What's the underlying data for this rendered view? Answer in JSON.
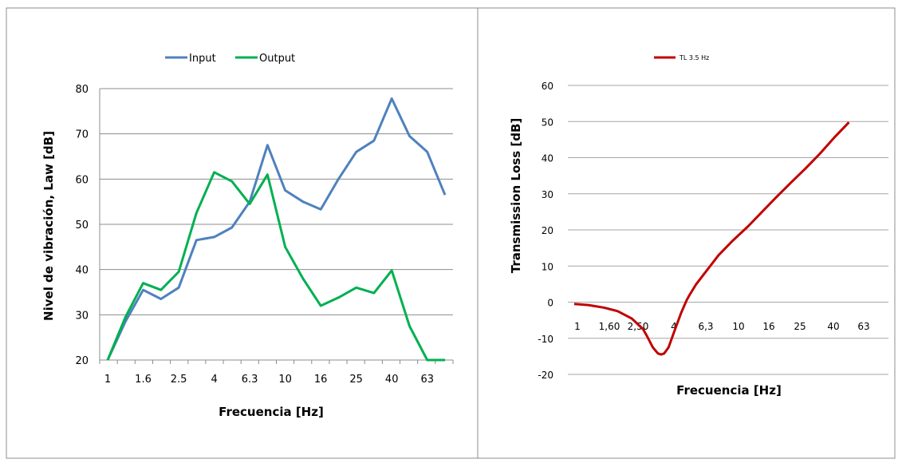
{
  "chart_data": [
    {
      "type": "line",
      "xlabel": "Frecuencia [Hz]",
      "ylabel": "Nivel de vibración,  Law  [dB]",
      "ylim": [
        20,
        80
      ],
      "y_ticks": [
        20,
        30,
        40,
        50,
        60,
        70,
        80
      ],
      "grid": "horizontal",
      "legend_position": "top",
      "categories": [
        "1",
        "1.25",
        "1.6",
        "2",
        "2.5",
        "3.15",
        "4",
        "5",
        "6.3",
        "8",
        "10",
        "12.5",
        "16",
        "20",
        "25",
        "31.5",
        "40",
        "50",
        "63",
        "80"
      ],
      "x_tick_labels": [
        "1",
        "1.6",
        "2.5",
        "4",
        "6.3",
        "10",
        "16",
        "25",
        "40",
        "63"
      ],
      "series": [
        {
          "name": "Input",
          "color": "#4F81BD",
          "values": [
            20,
            28.5,
            35.5,
            33.5,
            36,
            46.5,
            47.2,
            49.3,
            55,
            67.5,
            57.5,
            55,
            53.3,
            60,
            66,
            68.5,
            77.8,
            69.5,
            66,
            56.5
          ]
        },
        {
          "name": "Output",
          "color": "#00B050",
          "values": [
            20,
            29.5,
            37,
            35.5,
            39.5,
            52.5,
            61.5,
            59.5,
            54.5,
            61,
            45,
            38,
            32,
            33.8,
            36,
            34.8,
            39.8,
            27.5,
            20,
            20
          ]
        }
      ]
    },
    {
      "type": "line",
      "xlabel": "Frecuencia [Hz]",
      "ylabel": "Transmission Loss  [dB]",
      "ylim": [
        -20,
        60
      ],
      "y_ticks": [
        -20,
        -10,
        0,
        10,
        20,
        30,
        40,
        50,
        60
      ],
      "grid": "horizontal",
      "legend_position": "top",
      "x_scale": "log",
      "x_tick_labels": [
        "1",
        "1,60",
        "2,50",
        "4",
        "6,3",
        "10",
        "16",
        "25",
        "40",
        "63"
      ],
      "series": [
        {
          "name": "TL   3.5 Hz",
          "color": "#C00000",
          "x": [
            1,
            1.25,
            1.6,
            2,
            2.5,
            3,
            3.2,
            3.5,
            3.8,
            4,
            4.2,
            4.5,
            5,
            5.5,
            6,
            6.3,
            7,
            8,
            10,
            12.5,
            16,
            20,
            25,
            31.5,
            40,
            50,
            63,
            80
          ],
          "y": [
            -0.5,
            -0.8,
            -1.5,
            -2.5,
            -4.5,
            -7.5,
            -9.5,
            -12.5,
            -14.2,
            -14.5,
            -14.2,
            -12.5,
            -7.5,
            -3,
            0.5,
            2,
            5,
            8,
            13,
            17,
            21,
            25,
            29,
            33,
            37,
            41,
            45.5,
            49.8
          ]
        }
      ]
    }
  ]
}
